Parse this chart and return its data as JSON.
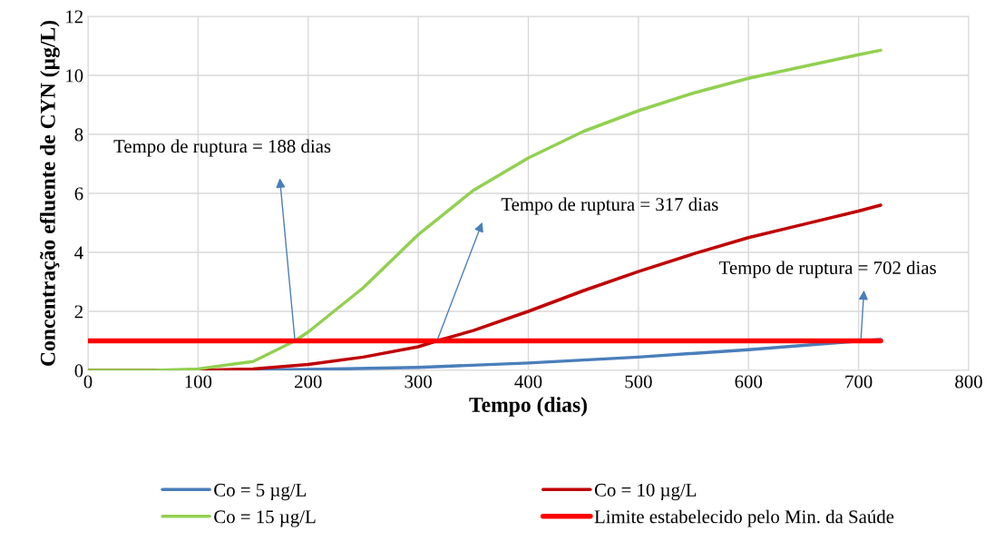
{
  "chart_data": {
    "type": "line",
    "xlabel": "Tempo (dias)",
    "ylabel": "Concentração efluente de CYN (µg/L)",
    "xlim": [
      0,
      800
    ],
    "xticks": [
      0,
      100,
      200,
      300,
      400,
      500,
      600,
      700,
      800
    ],
    "ylim": [
      0,
      12
    ],
    "yticks": [
      0,
      2,
      4,
      6,
      8,
      10,
      12
    ],
    "grid": true,
    "legend": "bottom",
    "marker": "none",
    "line_style": "solid",
    "series": [
      {
        "name": "Co = 5 µg/L",
        "color": "#4a7ebb",
        "x": [
          0,
          100,
          200,
          300,
          400,
          500,
          600,
          702,
          720
        ],
        "values": [
          0,
          0,
          0.03,
          0.1,
          0.25,
          0.45,
          0.7,
          1.0,
          1.05
        ]
      },
      {
        "name": "Co = 10 µg/L",
        "color": "#c00000",
        "x": [
          0,
          100,
          150,
          200,
          250,
          300,
          317,
          350,
          400,
          450,
          500,
          550,
          600,
          650,
          700,
          720
        ],
        "values": [
          0,
          0,
          0.05,
          0.2,
          0.45,
          0.8,
          1.0,
          1.35,
          2.0,
          2.7,
          3.35,
          3.95,
          4.5,
          4.95,
          5.4,
          5.6
        ]
      },
      {
        "name": "Co = 15 µg/L",
        "color": "#92d050",
        "x": [
          0,
          60,
          100,
          150,
          188,
          200,
          250,
          300,
          350,
          400,
          450,
          500,
          550,
          600,
          650,
          700,
          720
        ],
        "values": [
          0,
          0,
          0.05,
          0.3,
          1.0,
          1.3,
          2.8,
          4.6,
          6.1,
          7.2,
          8.1,
          8.8,
          9.4,
          9.9,
          10.3,
          10.7,
          10.85
        ]
      },
      {
        "name": "Limite estabelecido pelo Min. da Saúde",
        "color": "#ff0000",
        "x": [
          0,
          720
        ],
        "values": [
          1,
          1
        ]
      }
    ],
    "annotations": [
      {
        "text": "Tempo de ruptura = 188 dias",
        "x": 188,
        "y": 1
      },
      {
        "text": "Tempo de ruptura = 317 dias",
        "x": 317,
        "y": 1
      },
      {
        "text": "Tempo de ruptura = 702 dias",
        "x": 702,
        "y": 1
      }
    ]
  }
}
